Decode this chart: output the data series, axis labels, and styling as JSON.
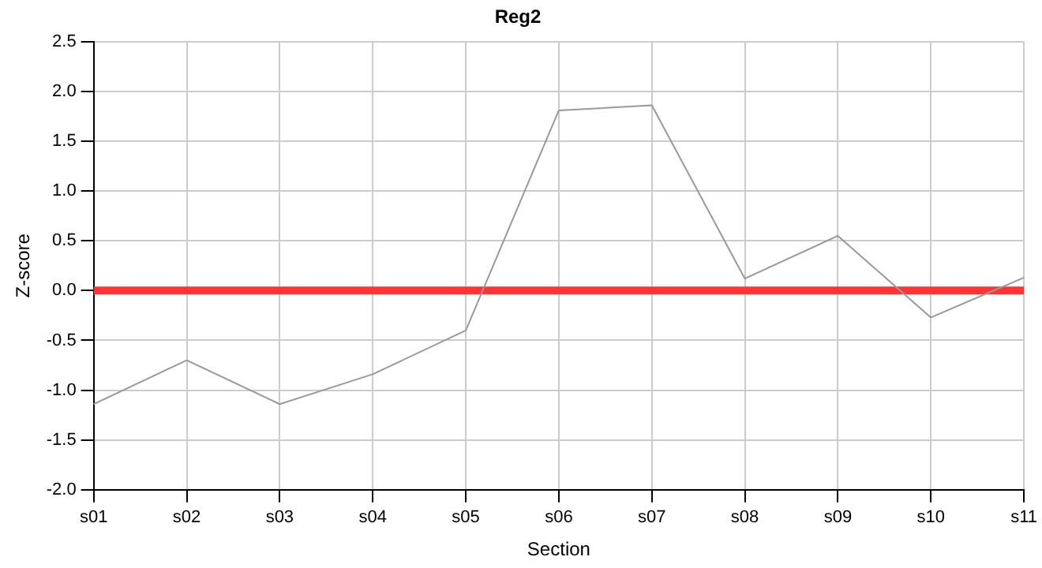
{
  "chart_data": {
    "type": "line",
    "title": "Reg2",
    "xlabel": "Section",
    "ylabel": "Z-score",
    "categories": [
      "s01",
      "s02",
      "s03",
      "s04",
      "s05",
      "s06",
      "s07",
      "s08",
      "s09",
      "s10",
      "s11"
    ],
    "series": [
      {
        "color": "#999999",
        "values": [
          -1.14,
          -0.7,
          -1.14,
          -0.84,
          -0.4,
          1.81,
          1.86,
          0.12,
          0.55,
          -0.27,
          0.13
        ]
      }
    ],
    "ylim": [
      -2.0,
      2.5
    ],
    "yticks": [
      {
        "value": -2,
        "label": "-2.0"
      },
      {
        "value": -1.5,
        "label": "-1.5"
      },
      {
        "value": -1,
        "label": "-1.0"
      },
      {
        "value": -0.5,
        "label": "-0.5"
      },
      {
        "value": 0,
        "label": "0.0"
      },
      {
        "value": 0.5,
        "label": "0.5"
      },
      {
        "value": 1,
        "label": "1.0"
      },
      {
        "value": 1.5,
        "label": "1.5"
      },
      {
        "value": 2,
        "label": "2.0"
      },
      {
        "value": 2.5,
        "label": "2.5"
      }
    ],
    "ref_lines": [
      {
        "axis": "y",
        "value": 0,
        "color": "#ff3333"
      }
    ],
    "grid": true,
    "legend": false,
    "marker": "none",
    "line_style": "solid"
  }
}
